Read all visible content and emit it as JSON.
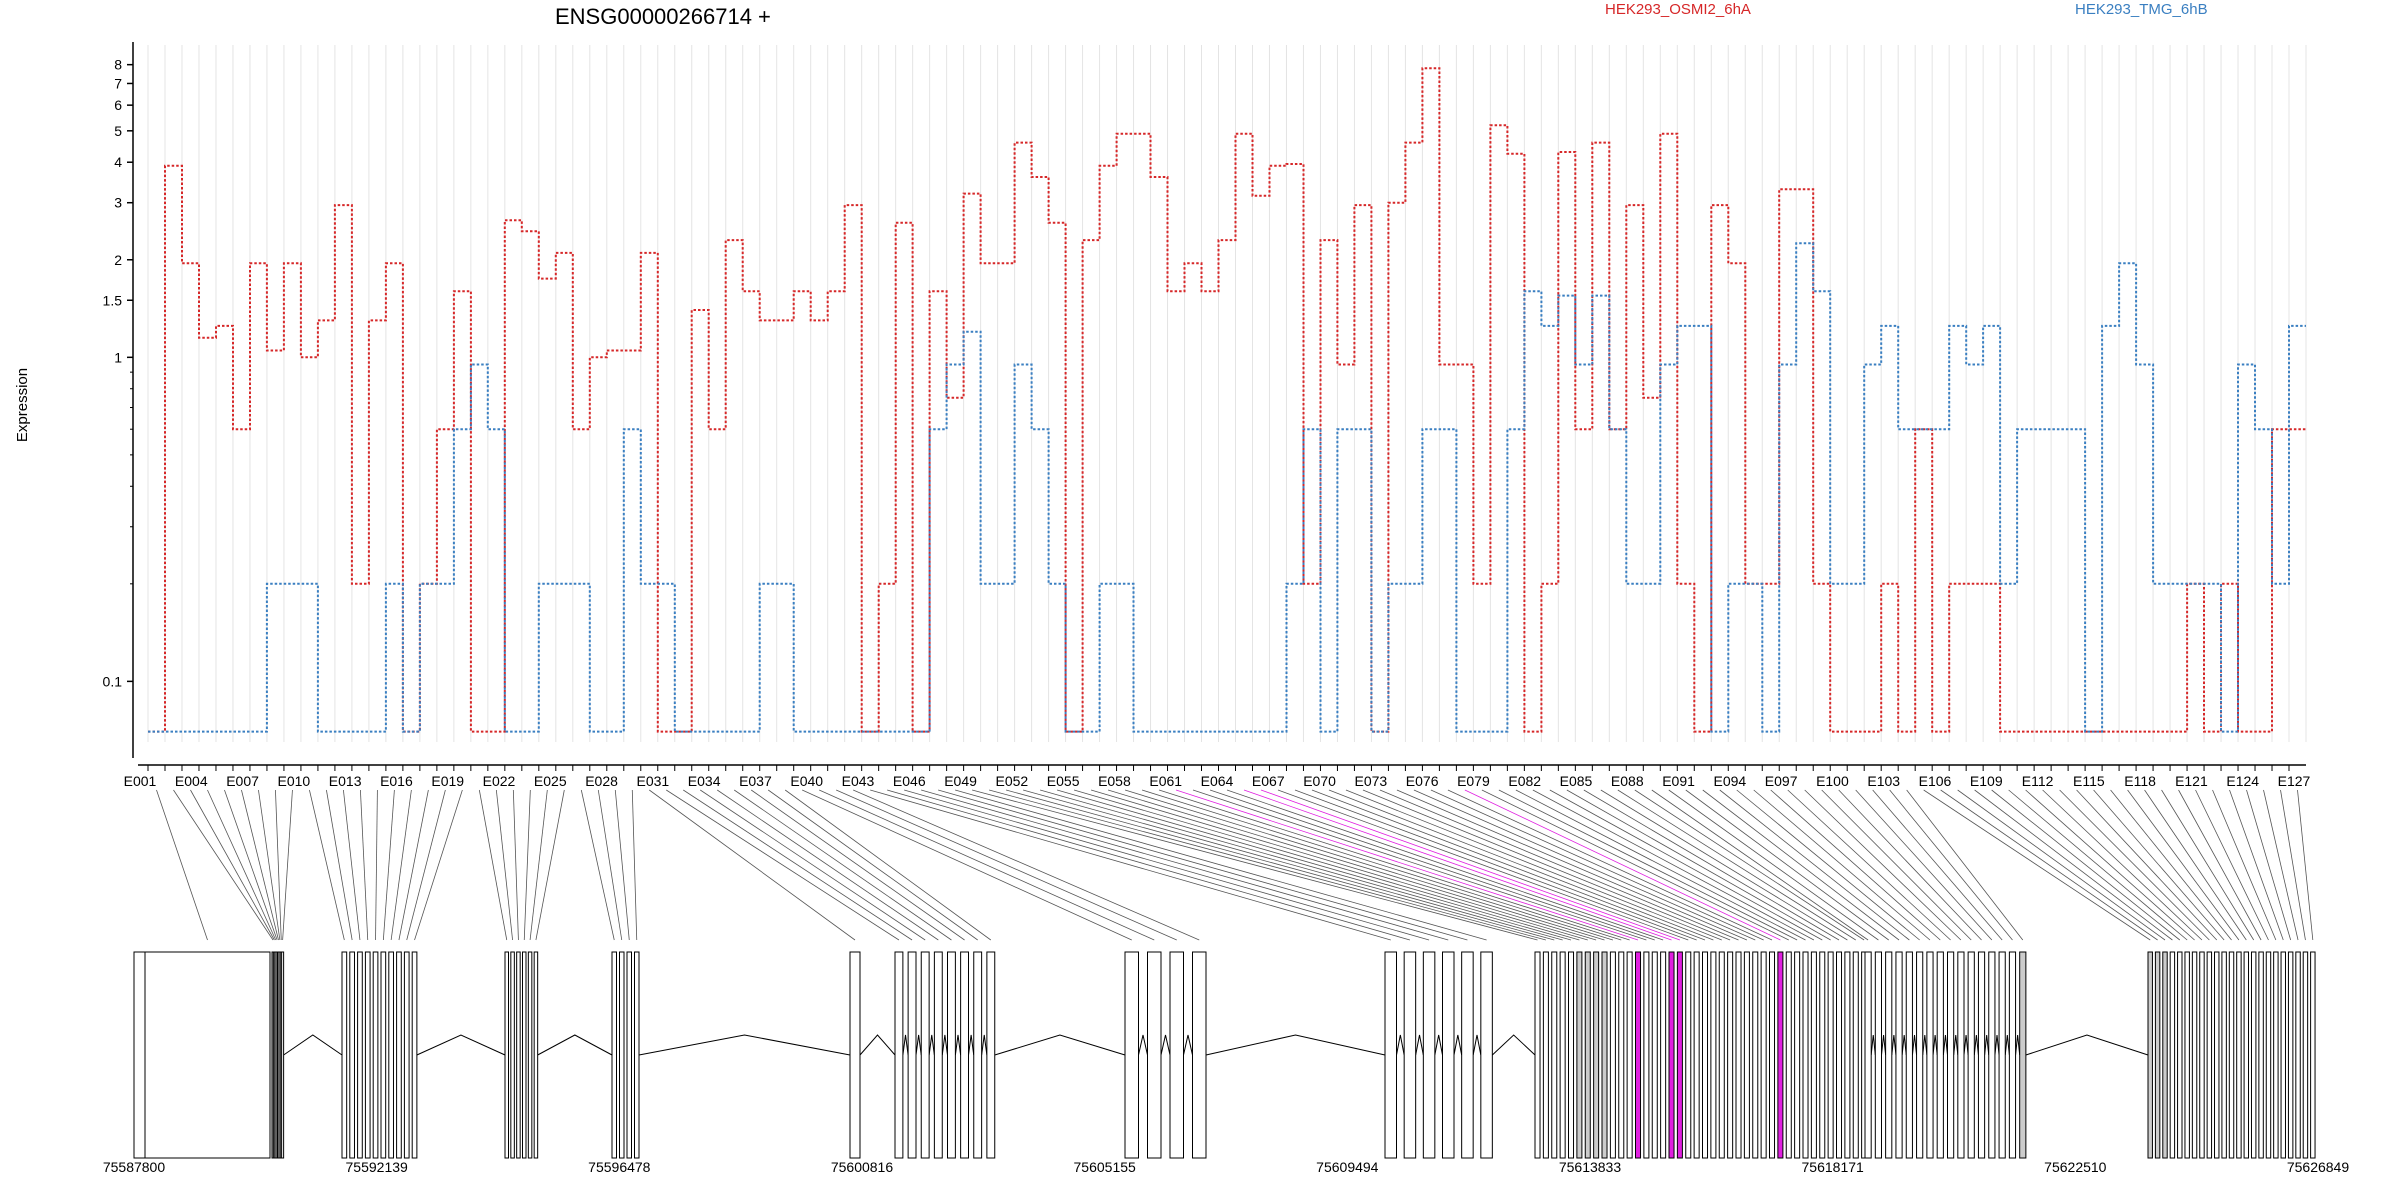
{
  "chart_data": {
    "type": "line",
    "title": "ENSG00000266714 +",
    "ylabel": "Expression",
    "xlabel": "",
    "y_scale": "log",
    "ylim": [
      0.065,
      9.2
    ],
    "y_ticks": [
      0.1,
      1,
      1.5,
      2,
      3,
      4,
      5,
      6,
      7,
      8
    ],
    "y_tick_labels": [
      "0.1",
      "1",
      "1.5",
      "2",
      "3",
      "4",
      "5",
      "6",
      "7",
      "8"
    ],
    "grid": "vertical",
    "legend_position": "top",
    "categories": [
      "E001",
      "E002",
      "E003",
      "E004",
      "E005",
      "E006",
      "E007",
      "E008",
      "E009",
      "E010",
      "E011",
      "E012",
      "E013",
      "E014",
      "E015",
      "E016",
      "E017",
      "E018",
      "E019",
      "E020",
      "E021",
      "E022",
      "E023",
      "E024",
      "E025",
      "E026",
      "E027",
      "E028",
      "E029",
      "E030",
      "E031",
      "E032",
      "E033",
      "E034",
      "E035",
      "E036",
      "E037",
      "E038",
      "E039",
      "E040",
      "E041",
      "E042",
      "E043",
      "E044",
      "E045",
      "E046",
      "E047",
      "E048",
      "E049",
      "E050",
      "E051",
      "E052",
      "E053",
      "E054",
      "E055",
      "E056",
      "E057",
      "E058",
      "E059",
      "E060",
      "E061",
      "E062",
      "E063",
      "E064",
      "E065",
      "E066",
      "E067",
      "E068",
      "E069",
      "E070",
      "E071",
      "E072",
      "E073",
      "E074",
      "E075",
      "E076",
      "E077",
      "E078",
      "E079",
      "E080",
      "E081",
      "E082",
      "E083",
      "E084",
      "E085",
      "E086",
      "E087",
      "E088",
      "E089",
      "E090",
      "E091",
      "E092",
      "E093",
      "E094",
      "E095",
      "E096",
      "E097",
      "E098",
      "E099",
      "E100",
      "E101",
      "E102",
      "E103",
      "E104",
      "E105",
      "E106",
      "E107",
      "E108",
      "E109",
      "E110",
      "E111",
      "E112",
      "E113",
      "E114",
      "E115",
      "E116",
      "E117",
      "E118",
      "E119",
      "E120",
      "E121",
      "E122",
      "E123",
      "E124",
      "E125",
      "E126",
      "E127"
    ],
    "category_tick_labels": [
      "E001",
      "E004",
      "E007",
      "E010",
      "E013",
      "E016",
      "E019",
      "E022",
      "E025",
      "E028",
      "E031",
      "E034",
      "E037",
      "E040",
      "E043",
      "E046",
      "E049",
      "E052",
      "E055",
      "E058",
      "E061",
      "E064",
      "E067",
      "E070",
      "E073",
      "E076",
      "E079",
      "E082",
      "E085",
      "E088",
      "E091",
      "E094",
      "E097",
      "E100",
      "E103",
      "E106",
      "E109",
      "E112",
      "E115",
      "E118",
      "E121",
      "E124",
      "E127"
    ],
    "series": [
      {
        "name": "HEK293_OSMI2_6hA",
        "color": "#d62728",
        "values": [
          0.07,
          3.9,
          1.95,
          1.15,
          1.25,
          0.6,
          1.95,
          1.05,
          1.95,
          1.0,
          1.3,
          2.95,
          0.2,
          1.3,
          1.95,
          0.07,
          0.2,
          0.6,
          1.6,
          0.07,
          0.07,
          2.65,
          2.45,
          1.75,
          2.1,
          0.6,
          1.0,
          1.05,
          1.05,
          2.1,
          0.07,
          0.07,
          1.4,
          0.6,
          2.3,
          1.6,
          1.3,
          1.3,
          1.6,
          1.3,
          1.6,
          2.95,
          0.07,
          0.2,
          2.6,
          0.07,
          1.6,
          0.75,
          3.2,
          1.95,
          1.95,
          4.6,
          3.6,
          2.6,
          0.07,
          2.3,
          3.9,
          4.9,
          4.9,
          3.6,
          1.6,
          1.95,
          1.6,
          2.3,
          4.9,
          3.15,
          3.9,
          3.95,
          0.2,
          2.3,
          0.95,
          2.95,
          0.07,
          3.0,
          4.6,
          7.8,
          0.95,
          0.95,
          0.2,
          5.2,
          4.25,
          0.07,
          0.2,
          4.3,
          0.6,
          4.6,
          0.6,
          2.95,
          0.75,
          4.9,
          0.2,
          0.07,
          2.95,
          1.95,
          0.2,
          0.2,
          3.3,
          3.3,
          0.2,
          0.07,
          0.07,
          0.07,
          0.2,
          0.07,
          0.6,
          0.07,
          0.2,
          0.2,
          0.2,
          0.07,
          0.07,
          0.07,
          0.07,
          0.07,
          0.07,
          0.07,
          0.07,
          0.07,
          0.07,
          0.07,
          0.2,
          0.07,
          0.2,
          0.07,
          0.07,
          0.6,
          0.6
        ]
      },
      {
        "name": "HEK293_TMG_6hB",
        "color": "#3a7fc1",
        "values": [
          0.07,
          0.07,
          0.07,
          0.07,
          0.07,
          0.07,
          0.07,
          0.2,
          0.2,
          0.2,
          0.07,
          0.07,
          0.07,
          0.07,
          0.2,
          0.07,
          0.2,
          0.2,
          0.6,
          0.95,
          0.6,
          0.07,
          0.07,
          0.2,
          0.2,
          0.2,
          0.07,
          0.07,
          0.6,
          0.2,
          0.2,
          0.07,
          0.07,
          0.07,
          0.07,
          0.07,
          0.2,
          0.2,
          0.07,
          0.07,
          0.07,
          0.07,
          0.07,
          0.07,
          0.07,
          0.07,
          0.6,
          0.95,
          1.2,
          0.2,
          0.2,
          0.95,
          0.6,
          0.2,
          0.07,
          0.07,
          0.2,
          0.2,
          0.07,
          0.07,
          0.07,
          0.07,
          0.07,
          0.07,
          0.07,
          0.07,
          0.07,
          0.2,
          0.6,
          0.07,
          0.6,
          0.6,
          0.07,
          0.2,
          0.2,
          0.6,
          0.6,
          0.07,
          0.07,
          0.07,
          0.6,
          1.6,
          1.25,
          1.55,
          0.95,
          1.55,
          0.6,
          0.2,
          0.2,
          0.95,
          1.25,
          1.25,
          0.07,
          0.2,
          0.2,
          0.07,
          0.95,
          2.25,
          1.6,
          0.2,
          0.2,
          0.95,
          1.25,
          0.6,
          0.6,
          0.6,
          1.25,
          0.95,
          1.25,
          0.2,
          0.6,
          0.6,
          0.6,
          0.6,
          0.07,
          1.25,
          1.95,
          0.95,
          0.2,
          0.2,
          0.2,
          0.2,
          0.07,
          0.95,
          0.6,
          0.2,
          1.25
        ]
      }
    ],
    "genomic_axis": {
      "tick_labels": [
        "75587800",
        "75592139",
        "75596478",
        "75600816",
        "75605155",
        "75609494",
        "75613833",
        "75618171",
        "75622510",
        "75626849"
      ]
    },
    "gene_model": {
      "highlight_color": "#e020e0",
      "intron_color": "#000000"
    }
  }
}
